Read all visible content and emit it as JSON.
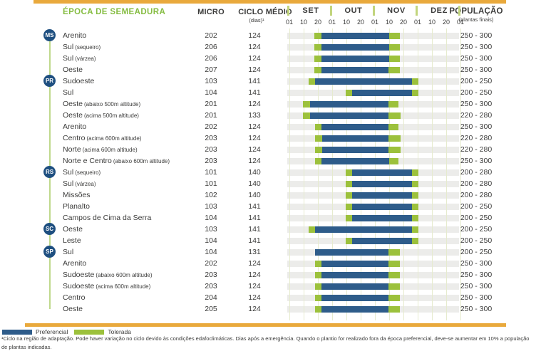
{
  "header": {
    "epoca_label": "ÉPOCA DE SEMEADURA",
    "micro_label": "MICRO",
    "ciclo_label": "CICLO  MÉDIO",
    "ciclo_sublabel": "(dias)¹",
    "populacao_label": "POPULAÇÃO",
    "populacao_sublabel": "(plantas finais)"
  },
  "legend": {
    "preferencial": "Preferencial",
    "tolerada": "Tolerada"
  },
  "footnote_lines": [
    "¹Ciclo na região de adaptação. Pode haver variação no ciclo devido às condições edafoclimáticas. Dias após a emergência. Quando o plantio for realizado fora da época preferencial, deve-se aumentar em 10% a população",
    "de plantas indicadas."
  ],
  "colors": {
    "preferencial-blue": "#2e5c8a",
    "tolerada-green": "#9cc13c",
    "accent-orange": "#e9a93c",
    "title-green": "#85bc41",
    "badge-navy": "#1e4f80",
    "track-gray": "#ececea",
    "gridline-green": "#e6ebce",
    "separator-green": "#c2d57d",
    "connector-green": "#bfd98c",
    "text-dark": "#3b3b3a"
  },
  "chart_data": {
    "type": "bar",
    "variant": "gantt-sowing-calendar",
    "title": "ÉPOCA DE SEMEADURA",
    "axis": {
      "months": [
        "SET",
        "OUT",
        "NOV",
        "DEZ"
      ],
      "tick_labels": [
        "01",
        "10",
        "20",
        "01",
        "10",
        "20",
        "01",
        "10",
        "20",
        "01",
        "10",
        "20",
        "01"
      ],
      "scale_note": "segment positions in tick units: 0 = 01 SET, 3 = 01 OUT, 6 = 01 NOV, 9 = 01 DEZ, 12 = 01 JAN",
      "range_ticks": [
        0,
        12
      ],
      "grid": true
    },
    "legend_series": [
      "Preferencial",
      "Tolerada"
    ],
    "rows": [
      {
        "state": "MS",
        "name": "Arenito",
        "sub": "",
        "micro": "202",
        "ciclo": "124",
        "populacao": "250 - 300",
        "segments": [
          [
            "tolerada",
            1.75,
            2.25
          ],
          [
            "preferencial",
            2.25,
            7.0
          ],
          [
            "tolerada",
            7.0,
            7.75
          ]
        ]
      },
      {
        "state": "",
        "name": "Sul",
        "sub": "(sequeiro)",
        "micro": "206",
        "ciclo": "124",
        "populacao": "250 - 300",
        "segments": [
          [
            "tolerada",
            1.75,
            2.25
          ],
          [
            "preferencial",
            2.25,
            7.0
          ],
          [
            "tolerada",
            7.0,
            7.75
          ]
        ]
      },
      {
        "state": "",
        "name": "Sul",
        "sub": "(várzea)",
        "micro": "206",
        "ciclo": "124",
        "populacao": "250 - 300",
        "segments": [
          [
            "tolerada",
            1.75,
            2.25
          ],
          [
            "preferencial",
            2.25,
            7.0
          ],
          [
            "tolerada",
            7.0,
            7.75
          ]
        ]
      },
      {
        "state": "",
        "name": "Oeste",
        "sub": "",
        "micro": "207",
        "ciclo": "124",
        "populacao": "250 - 300",
        "segments": [
          [
            "tolerada",
            1.75,
            2.25
          ],
          [
            "preferencial",
            2.25,
            6.95
          ],
          [
            "tolerada",
            6.95,
            7.75
          ]
        ]
      },
      {
        "state": "PR",
        "name": "Sudoeste",
        "sub": "",
        "micro": "103",
        "ciclo": "141",
        "populacao": "200 - 250",
        "segments": [
          [
            "tolerada",
            1.35,
            1.8
          ],
          [
            "preferencial",
            1.8,
            8.6
          ],
          [
            "tolerada",
            8.6,
            9.05
          ]
        ]
      },
      {
        "state": "",
        "name": "Sul",
        "sub": "",
        "micro": "104",
        "ciclo": "141",
        "populacao": "200 - 250",
        "segments": [
          [
            "tolerada",
            3.95,
            4.4
          ],
          [
            "preferencial",
            4.4,
            8.6
          ],
          [
            "tolerada",
            8.6,
            9.05
          ]
        ]
      },
      {
        "state": "",
        "name": "Oeste",
        "sub": "(abaixo 500m altitude)",
        "micro": "201",
        "ciclo": "124",
        "populacao": "250 - 300",
        "segments": [
          [
            "tolerada",
            0.95,
            1.45
          ],
          [
            "preferencial",
            1.45,
            6.95
          ],
          [
            "tolerada",
            6.95,
            7.65
          ]
        ]
      },
      {
        "state": "",
        "name": "Oeste",
        "sub": "(acima 500m altitude)",
        "micro": "201",
        "ciclo": "133",
        "populacao": "220 - 280",
        "segments": [
          [
            "tolerada",
            0.95,
            1.45
          ],
          [
            "preferencial",
            1.45,
            6.95
          ],
          [
            "tolerada",
            6.95,
            7.8
          ]
        ]
      },
      {
        "state": "",
        "name": "Arenito",
        "sub": "",
        "micro": "202",
        "ciclo": "124",
        "populacao": "250 - 300",
        "segments": [
          [
            "tolerada",
            1.8,
            2.25
          ],
          [
            "preferencial",
            2.25,
            6.95
          ],
          [
            "tolerada",
            6.95,
            7.65
          ]
        ]
      },
      {
        "state": "",
        "name": "Centro",
        "sub": "(acima 600m altitude)",
        "micro": "203",
        "ciclo": "124",
        "populacao": "220 - 280",
        "segments": [
          [
            "tolerada",
            1.8,
            2.3
          ],
          [
            "preferencial",
            2.3,
            6.95
          ],
          [
            "tolerada",
            6.95,
            7.8
          ]
        ]
      },
      {
        "state": "",
        "name": "Norte",
        "sub": "(acima 600m altitude)",
        "micro": "203",
        "ciclo": "124",
        "populacao": "220 - 280",
        "segments": [
          [
            "tolerada",
            1.8,
            2.3
          ],
          [
            "preferencial",
            2.3,
            6.95
          ],
          [
            "tolerada",
            6.95,
            7.8
          ]
        ]
      },
      {
        "state": "",
        "name": "Norte e Centro",
        "sub": "(abaixo 600m altitude)",
        "micro": "203",
        "ciclo": "124",
        "populacao": "250 - 300",
        "segments": [
          [
            "tolerada",
            1.8,
            2.25
          ],
          [
            "preferencial",
            2.25,
            7.0
          ],
          [
            "tolerada",
            7.0,
            7.65
          ]
        ]
      },
      {
        "state": "RS",
        "name": "Sul",
        "sub": "(sequeiro)",
        "micro": "101",
        "ciclo": "140",
        "populacao": "200 - 280",
        "segments": [
          [
            "tolerada",
            3.95,
            4.4
          ],
          [
            "preferencial",
            4.4,
            8.6
          ],
          [
            "tolerada",
            8.6,
            9.05
          ]
        ]
      },
      {
        "state": "",
        "name": "Sul",
        "sub": "(várzea)",
        "micro": "101",
        "ciclo": "140",
        "populacao": "200 - 280",
        "segments": [
          [
            "tolerada",
            3.95,
            4.4
          ],
          [
            "preferencial",
            4.4,
            8.6
          ],
          [
            "tolerada",
            8.6,
            9.05
          ]
        ]
      },
      {
        "state": "",
        "name": "Missões",
        "sub": "",
        "micro": "102",
        "ciclo": "140",
        "populacao": "200 - 280",
        "segments": [
          [
            "tolerada",
            3.95,
            4.4
          ],
          [
            "preferencial",
            4.4,
            8.6
          ],
          [
            "tolerada",
            8.6,
            9.05
          ]
        ]
      },
      {
        "state": "",
        "name": "Planalto",
        "sub": "",
        "micro": "103",
        "ciclo": "141",
        "populacao": "200 - 250",
        "segments": [
          [
            "tolerada",
            3.95,
            4.4
          ],
          [
            "preferencial",
            4.4,
            8.6
          ],
          [
            "tolerada",
            8.6,
            9.05
          ]
        ]
      },
      {
        "state": "",
        "name": "Campos de Cima da Serra",
        "sub": "",
        "micro": "104",
        "ciclo": "141",
        "populacao": "200 - 250",
        "segments": [
          [
            "tolerada",
            3.95,
            4.4
          ],
          [
            "preferencial",
            4.4,
            8.6
          ],
          [
            "tolerada",
            8.6,
            9.05
          ]
        ]
      },
      {
        "state": "SC",
        "name": "Oeste",
        "sub": "",
        "micro": "103",
        "ciclo": "141",
        "populacao": "200 - 250",
        "segments": [
          [
            "tolerada",
            1.35,
            1.8
          ],
          [
            "preferencial",
            1.8,
            8.6
          ],
          [
            "tolerada",
            8.6,
            9.05
          ]
        ]
      },
      {
        "state": "",
        "name": "Leste",
        "sub": "",
        "micro": "104",
        "ciclo": "141",
        "populacao": "200 - 250",
        "segments": [
          [
            "tolerada",
            3.95,
            4.4
          ],
          [
            "preferencial",
            4.4,
            8.6
          ],
          [
            "tolerada",
            8.6,
            9.05
          ]
        ]
      },
      {
        "state": "SP",
        "name": "Sul",
        "sub": "",
        "micro": "104",
        "ciclo": "131",
        "populacao": "200 - 250",
        "segments": [
          [
            "preferencial",
            1.8,
            6.95
          ],
          [
            "tolerada",
            6.95,
            7.75
          ]
        ]
      },
      {
        "state": "",
        "name": "Arenito",
        "sub": "",
        "micro": "202",
        "ciclo": "124",
        "populacao": "250 - 300",
        "segments": [
          [
            "tolerada",
            1.8,
            2.25
          ],
          [
            "preferencial",
            2.25,
            6.95
          ],
          [
            "tolerada",
            6.95,
            7.75
          ]
        ]
      },
      {
        "state": "",
        "name": "Sudoeste",
        "sub": "(abaixo 600m altitude)",
        "micro": "203",
        "ciclo": "124",
        "populacao": "250 - 300",
        "segments": [
          [
            "tolerada",
            1.8,
            2.25
          ],
          [
            "preferencial",
            2.25,
            6.95
          ],
          [
            "tolerada",
            6.95,
            7.75
          ]
        ]
      },
      {
        "state": "",
        "name": "Sudoeste",
        "sub": "(acima 600m altitude)",
        "micro": "203",
        "ciclo": "124",
        "populacao": "250 - 300",
        "segments": [
          [
            "tolerada",
            1.8,
            2.25
          ],
          [
            "preferencial",
            2.25,
            6.95
          ],
          [
            "tolerada",
            6.95,
            7.75
          ]
        ]
      },
      {
        "state": "",
        "name": "Centro",
        "sub": "",
        "micro": "204",
        "ciclo": "124",
        "populacao": "250 - 300",
        "segments": [
          [
            "tolerada",
            1.8,
            2.25
          ],
          [
            "preferencial",
            2.25,
            6.95
          ],
          [
            "tolerada",
            6.95,
            7.75
          ]
        ]
      },
      {
        "state": "",
        "name": "Oeste",
        "sub": "",
        "micro": "205",
        "ciclo": "124",
        "populacao": "250 - 300",
        "segments": [
          [
            "tolerada",
            1.8,
            2.25
          ],
          [
            "preferencial",
            2.25,
            6.95
          ],
          [
            "tolerada",
            6.95,
            7.75
          ]
        ]
      }
    ]
  }
}
